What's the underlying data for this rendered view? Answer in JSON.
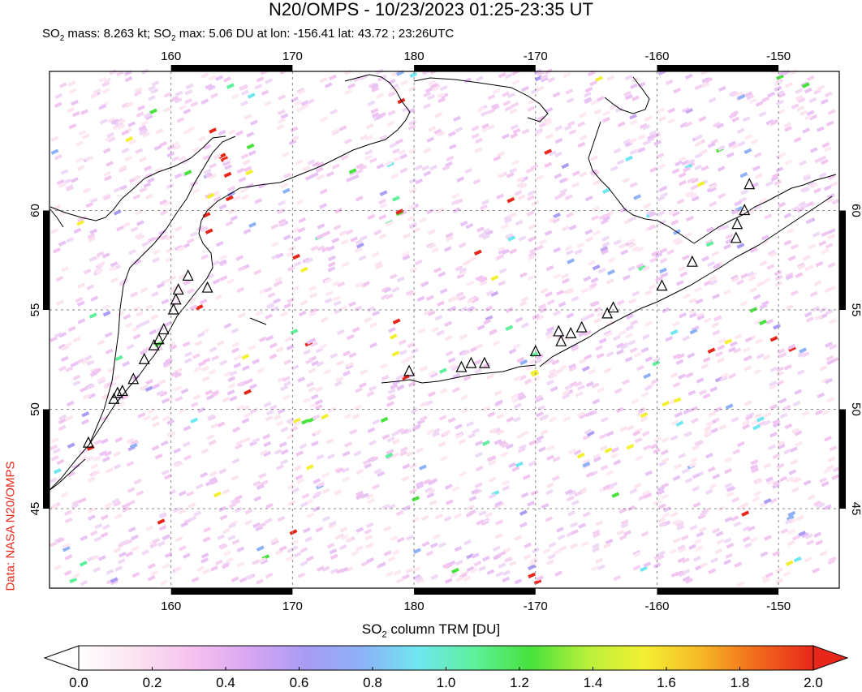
{
  "header": {
    "title": "N20/OMPS - 10/23/2023 01:25-23:35 UT",
    "subtitle_prefix": "SO",
    "subtitle_mid1": " mass: 8.263 kt; SO",
    "subtitle_rest": " max: 5.06 DU at lon: -156.41 lat: 43.72 ; 23:26UTC",
    "subscript": "2"
  },
  "credit": "Data: NASA N20/OMPS",
  "colorbar": {
    "label_prefix": "SO",
    "label_sub": "2",
    "label_rest": " column TRM [DU]",
    "ticks": [
      "0.0",
      "0.2",
      "0.4",
      "0.6",
      "0.8",
      "1.0",
      "1.2",
      "1.4",
      "1.6",
      "1.8",
      "2.0"
    ],
    "colors": [
      "#ffffff",
      "#fbe3f0",
      "#f6c2ef",
      "#d9a6f2",
      "#a99cf5",
      "#8db1f7",
      "#6fe6f0",
      "#5ef09a",
      "#47e23c",
      "#b7f03a",
      "#f3f032",
      "#f6b826",
      "#f26a1c",
      "#e8271b"
    ]
  },
  "chart_data": {
    "type": "heatmap",
    "title": "N20/OMPS - 10/23/2023 01:25-23:35 UT",
    "colorbar_label": "SO2 column TRM [DU]",
    "colorbar_range": [
      0.0,
      2.0
    ],
    "lon_ticks_top": [
      "160",
      "170",
      "180",
      "-170",
      "-160",
      "-150"
    ],
    "lon_ticks_bottom": [
      "160",
      "170",
      "180",
      "-170",
      "-160",
      "-150"
    ],
    "lat_ticks": [
      "60",
      "55",
      "50",
      "45"
    ],
    "xlim_lon": [
      150,
      215
    ],
    "ylim_lat": [
      41,
      67
    ],
    "grid": true,
    "so2_mass_kt": 8.263,
    "so2_max_du": 5.06,
    "so2_max_lon": -156.41,
    "so2_max_lat": 43.72,
    "so2_max_time": "23:26UTC",
    "volcanoes": [
      {
        "lon": 153.2,
        "lat": 48.3
      },
      {
        "lon": 155.3,
        "lat": 50.5
      },
      {
        "lon": 155.6,
        "lat": 50.8
      },
      {
        "lon": 156.0,
        "lat": 50.9
      },
      {
        "lon": 156.9,
        "lat": 51.5
      },
      {
        "lon": 157.8,
        "lat": 52.5
      },
      {
        "lon": 158.6,
        "lat": 53.2
      },
      {
        "lon": 159.0,
        "lat": 53.5
      },
      {
        "lon": 159.4,
        "lat": 54.0
      },
      {
        "lon": 160.2,
        "lat": 55.0
      },
      {
        "lon": 160.4,
        "lat": 55.5
      },
      {
        "lon": 160.6,
        "lat": 56.0
      },
      {
        "lon": 161.4,
        "lat": 56.7
      },
      {
        "lon": 163.0,
        "lat": 56.1
      },
      {
        "lon": 179.6,
        "lat": 51.9
      },
      {
        "lon": 183.9,
        "lat": 52.1
      },
      {
        "lon": 184.7,
        "lat": 52.3
      },
      {
        "lon": 185.8,
        "lat": 52.3
      },
      {
        "lon": 190.0,
        "lat": 52.9
      },
      {
        "lon": 191.9,
        "lat": 53.9
      },
      {
        "lon": 192.1,
        "lat": 53.4
      },
      {
        "lon": 192.9,
        "lat": 53.8
      },
      {
        "lon": 193.8,
        "lat": 54.1
      },
      {
        "lon": 195.9,
        "lat": 54.8
      },
      {
        "lon": 196.4,
        "lat": 55.1
      },
      {
        "lon": 200.4,
        "lat": 56.2
      },
      {
        "lon": 202.9,
        "lat": 57.4
      },
      {
        "lon": 206.5,
        "lat": 58.6
      },
      {
        "lon": 206.6,
        "lat": 59.3
      },
      {
        "lon": 207.2,
        "lat": 60.0
      },
      {
        "lon": 207.6,
        "lat": 61.3
      }
    ]
  }
}
